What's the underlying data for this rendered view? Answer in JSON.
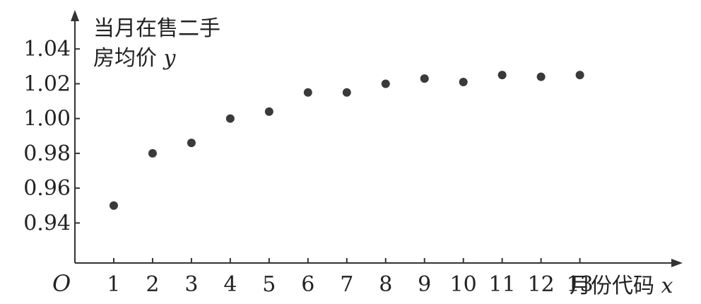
{
  "chart_data": {
    "type": "scatter",
    "ylabel_lines": [
      "当月在售二手",
      "房均价"
    ],
    "ylabel_var": "y",
    "xlabel": "月份代码",
    "xlabel_var": "x",
    "origin_label": "O",
    "x": [
      1,
      2,
      3,
      4,
      5,
      6,
      7,
      8,
      9,
      10,
      11,
      12,
      13
    ],
    "y": [
      0.95,
      0.98,
      0.986,
      1.0,
      1.004,
      1.015,
      1.015,
      1.02,
      1.023,
      1.021,
      1.025,
      1.024,
      1.025
    ],
    "x_ticks": [
      "1",
      "2",
      "3",
      "4",
      "5",
      "6",
      "7",
      "8",
      "9",
      "10",
      "11",
      "12",
      "13"
    ],
    "y_ticks": [
      "0.94",
      "0.96",
      "0.98",
      "1.00",
      "1.02",
      "1.04"
    ],
    "xlim": [
      0,
      15.5
    ],
    "ylim": [
      0.917,
      1.06
    ],
    "grid": false,
    "colors": {
      "point": "#3a3a3a",
      "axis": "#333333"
    }
  }
}
